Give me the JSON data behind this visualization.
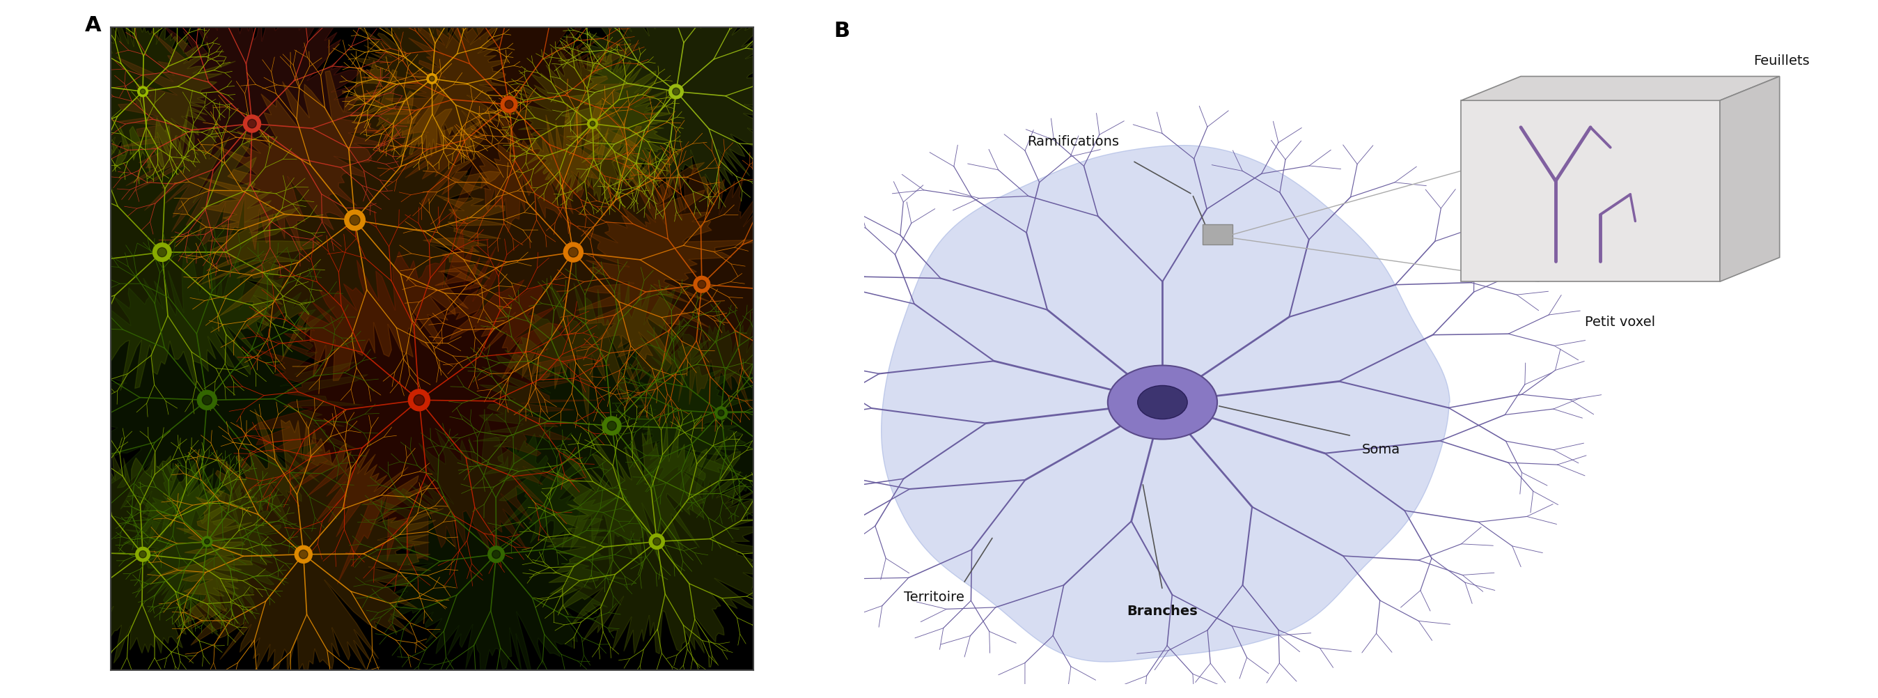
{
  "fig_width": 26.97,
  "fig_height": 10.03,
  "background_color": "#ffffff",
  "panel_A_label": "A",
  "panel_B_label": "B",
  "label_fontsize": 22,
  "label_fontweight": "bold",
  "astrocyte_territory_color": "#c8d4ef",
  "astrocyte_body_color": "#8878c3",
  "astrocyte_branch_color": "#6b5fa0",
  "astrocyte_soma_outer_color": "#8878c3",
  "astrocyte_soma_inner_color": "#3d3470",
  "voxel_bg_color": "#e0dede",
  "voxel_structure_color": "#8060a0",
  "annotation_fontsize": 14,
  "annotation_color": "#111111",
  "line_color": "#555555",
  "labels": {
    "ramifications": "Ramifications",
    "territoire": "Territoire",
    "branches": "Branches",
    "soma": "Soma",
    "feuillets": "Feuillets",
    "petit_voxel": "Petit voxel"
  }
}
